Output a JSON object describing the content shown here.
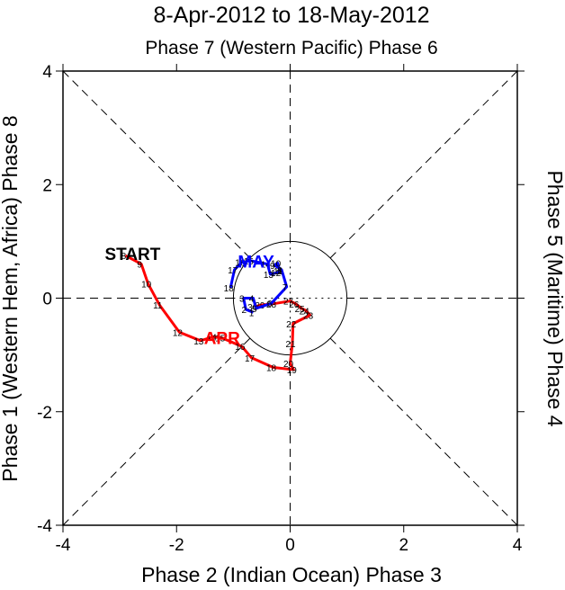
{
  "chart_data": {
    "type": "line",
    "title": "8-Apr-2012 to 18-May-2012",
    "subtitle": "Phase 7 (Western Pacific) Phase 6",
    "xlabel": "Phase 2 (Indian Ocean) Phase 3",
    "ylabel_left": "Phase 1 (Western Hem, Africa) Phase 8",
    "ylabel_right": "Phase 5 (Maritime) Phase 4",
    "xlim": [
      -4,
      4
    ],
    "ylim": [
      -4,
      4
    ],
    "xticks": [
      -4,
      -2,
      0,
      2,
      4
    ],
    "yticks": [
      -4,
      -2,
      0,
      2,
      4
    ],
    "xtick_labels": [
      "-4",
      "-2",
      "0",
      "2",
      "4"
    ],
    "ytick_labels": [
      "-4",
      "-2",
      "0",
      "2",
      "4"
    ],
    "unit_circle_radius": 1,
    "start_label": "START",
    "series": [
      {
        "name": "APR",
        "color": "#ff0000",
        "label_at": [
          -1.2,
          -0.7
        ],
        "points": [
          {
            "d": "8",
            "x": -2.9,
            "y": 0.75
          },
          {
            "d": "9",
            "x": -2.62,
            "y": 0.6
          },
          {
            "d": "10",
            "x": -2.5,
            "y": 0.25
          },
          {
            "d": "11",
            "x": -2.3,
            "y": -0.12
          },
          {
            "d": "12",
            "x": -1.95,
            "y": -0.6
          },
          {
            "d": "13",
            "x": -1.58,
            "y": -0.75
          },
          {
            "d": "14",
            "x": -1.35,
            "y": -0.68
          },
          {
            "d": "15",
            "x": -1.2,
            "y": -0.7
          },
          {
            "d": "16",
            "x": -0.85,
            "y": -0.85
          },
          {
            "d": "17",
            "x": -0.68,
            "y": -1.05
          },
          {
            "d": "18",
            "x": -0.3,
            "y": -1.22
          },
          {
            "d": "19",
            "x": 0.06,
            "y": -1.26
          },
          {
            "d": "20",
            "x": 0.0,
            "y": -1.15
          },
          {
            "d": "21",
            "x": 0.04,
            "y": -0.8
          },
          {
            "d": "22",
            "x": 0.05,
            "y": -0.45
          },
          {
            "d": "23",
            "x": 0.35,
            "y": -0.3
          },
          {
            "d": "24",
            "x": 0.28,
            "y": -0.22
          },
          {
            "d": "25",
            "x": 0.2,
            "y": -0.18
          },
          {
            "d": "26",
            "x": 0.1,
            "y": -0.1
          },
          {
            "d": "27",
            "x": 0.0,
            "y": -0.05
          },
          {
            "d": "28",
            "x": -0.3,
            "y": -0.1
          },
          {
            "d": "29",
            "x": -0.5,
            "y": -0.12
          },
          {
            "d": "30",
            "x": -0.63,
            "y": -0.15
          }
        ]
      },
      {
        "name": "MAY",
        "color": "#0000ff",
        "label_at": [
          -0.6,
          0.65
        ],
        "points": [
          {
            "d": "1",
            "x": -0.65,
            "y": -0.25
          },
          {
            "d": "2",
            "x": -0.78,
            "y": -0.2
          },
          {
            "d": "3",
            "x": -0.82,
            "y": 0.0
          },
          {
            "d": "4",
            "x": -0.65,
            "y": 0.0
          },
          {
            "d": "5",
            "x": -0.6,
            "y": -0.18
          },
          {
            "d": "6",
            "x": -0.33,
            "y": -0.09
          },
          {
            "d": "7",
            "x": -0.06,
            "y": 0.2
          },
          {
            "d": "8",
            "x": -0.15,
            "y": 0.5
          },
          {
            "d": "9",
            "x": -0.28,
            "y": 0.58
          },
          {
            "d": "10",
            "x": -0.22,
            "y": 0.62
          },
          {
            "d": "11",
            "x": -0.18,
            "y": 0.48
          },
          {
            "d": "12",
            "x": -0.22,
            "y": 0.45
          },
          {
            "d": "13",
            "x": -0.35,
            "y": 0.42
          },
          {
            "d": "14",
            "x": -0.4,
            "y": 0.6
          },
          {
            "d": "15",
            "x": -0.7,
            "y": 0.66
          },
          {
            "d": "16",
            "x": -0.85,
            "y": 0.63
          },
          {
            "d": "17",
            "x": -0.98,
            "y": 0.5
          },
          {
            "d": "18",
            "x": -1.05,
            "y": 0.18
          }
        ]
      }
    ]
  }
}
